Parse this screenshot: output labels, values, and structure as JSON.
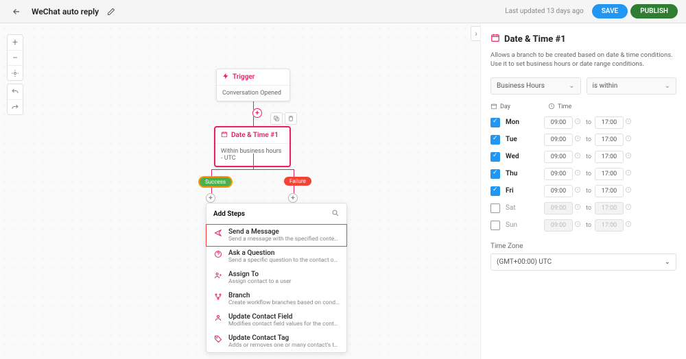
{
  "header": {
    "title": "WeChat auto reply",
    "last_updated": "Last updated 13 days ago",
    "save_label": "SAVE",
    "publish_label": "PUBLISH"
  },
  "flow": {
    "trigger": {
      "label": "Trigger",
      "body": "Conversation Opened"
    },
    "datetime": {
      "label": "Date & Time #1",
      "body": "Within business hours - UTC"
    },
    "success_badge": "Success",
    "failure_badge": "Failure"
  },
  "steps": {
    "heading": "Add Steps",
    "items": [
      {
        "title": "Send a Message",
        "desc": "Send a message with the specified content to t…",
        "icon": "send",
        "highlight": true
      },
      {
        "title": "Ask a Question",
        "desc": "Send a specific question to the contact on the l…",
        "icon": "question"
      },
      {
        "title": "Assign To",
        "desc": "Assign contact to a user",
        "icon": "assign"
      },
      {
        "title": "Branch",
        "desc": "Create workflow branches based on conditions",
        "icon": "branch"
      },
      {
        "title": "Update Contact Field",
        "desc": "Modifies contact field values for the contact",
        "icon": "contact"
      },
      {
        "title": "Update Contact Tag",
        "desc": "Adds or removes one or many contact's tags",
        "icon": "tag"
      }
    ]
  },
  "right": {
    "title": "Date & Time #1",
    "subtitle": "Allows a branch to be created based on date & time conditions. Use it to set business hours or date range conditions.",
    "select1": "Business Hours",
    "select2": "is within",
    "col_day": "Day",
    "col_time": "Time",
    "to_label": "to",
    "days": [
      {
        "name": "Mon",
        "checked": true,
        "from": "09:00",
        "to": "17:00"
      },
      {
        "name": "Tue",
        "checked": true,
        "from": "09:00",
        "to": "17:00"
      },
      {
        "name": "Wed",
        "checked": true,
        "from": "09:00",
        "to": "17:00"
      },
      {
        "name": "Thu",
        "checked": true,
        "from": "09:00",
        "to": "17:00"
      },
      {
        "name": "Fri",
        "checked": true,
        "from": "09:00",
        "to": "17:00"
      },
      {
        "name": "Sat",
        "checked": false,
        "from": "09:00",
        "to": "17:00"
      },
      {
        "name": "Sun",
        "checked": false,
        "from": "09:00",
        "to": "17:00"
      }
    ],
    "tz_label": "Time Zone",
    "tz_value": "(GMT+00:00) UTC"
  },
  "colors": {
    "accent": "#e91e63",
    "save": "#2196f3",
    "publish": "#2e7d32",
    "success": "#4caf50",
    "failure": "#f44336"
  }
}
